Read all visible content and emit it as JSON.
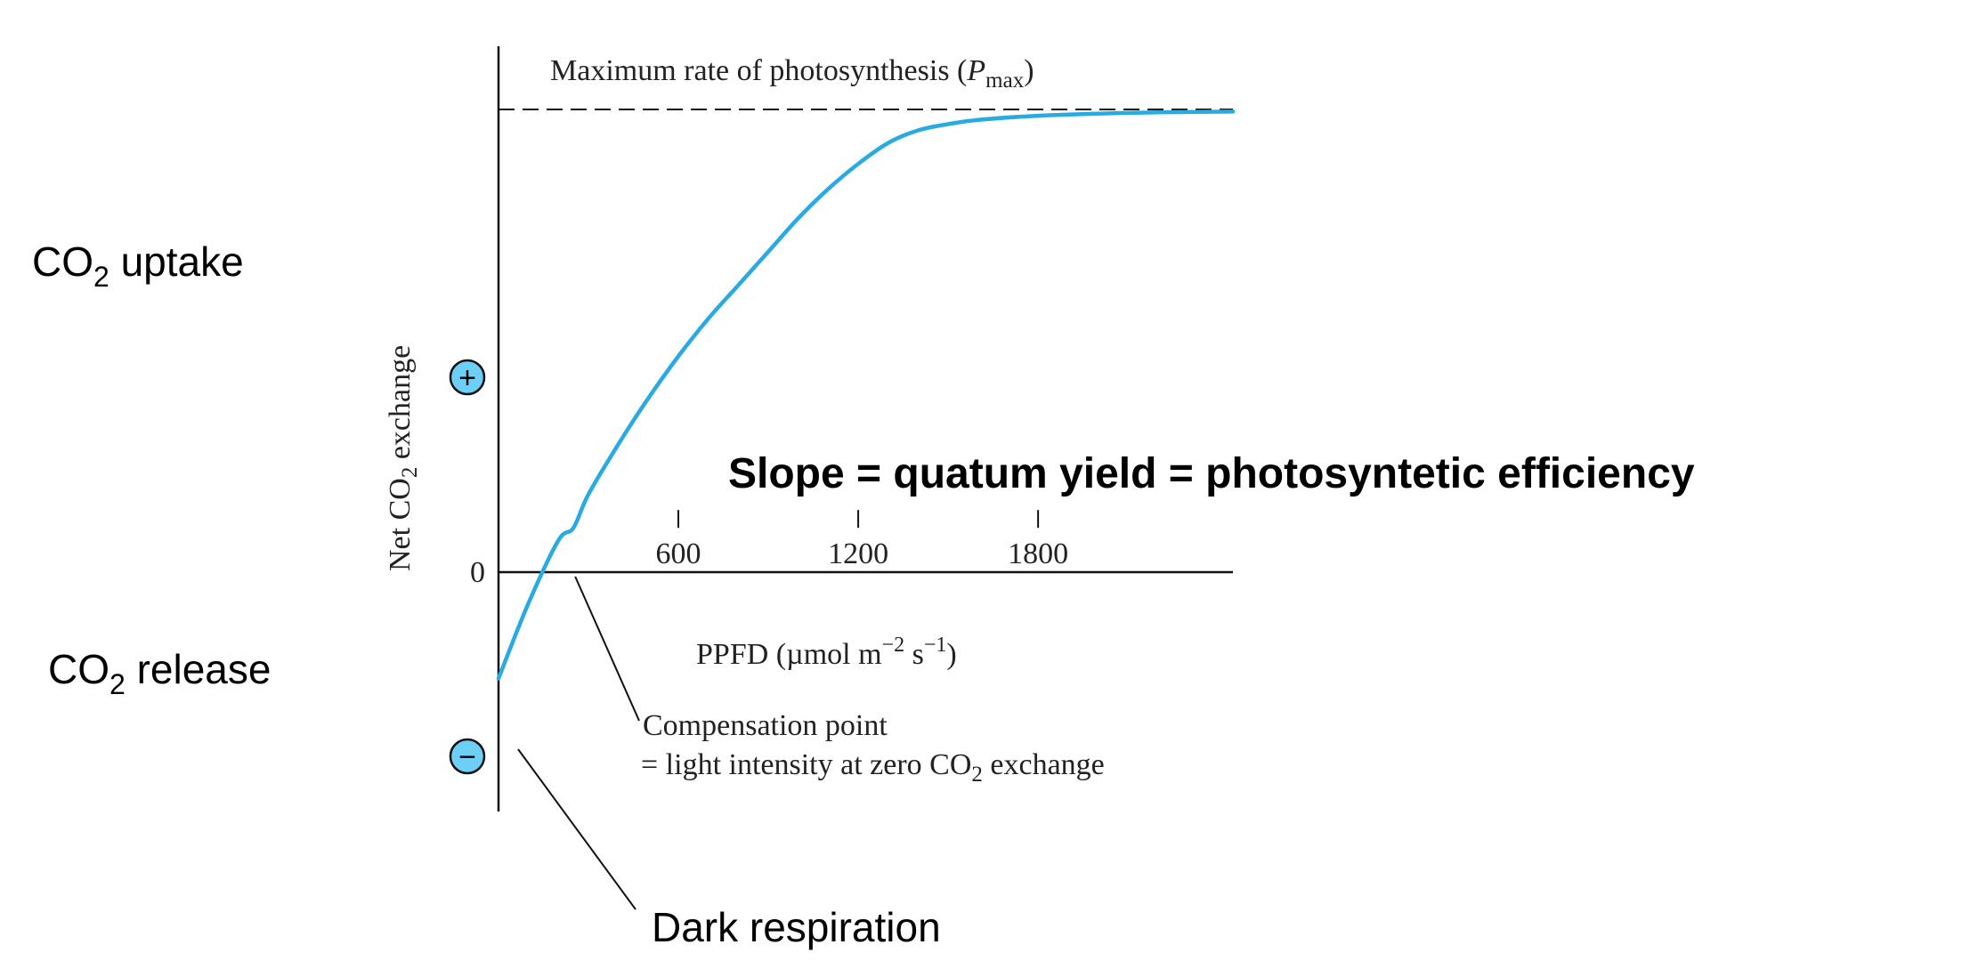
{
  "colors": {
    "curve": "#29abe2",
    "marker_fill": "#6ecff6",
    "axis": "#111111"
  },
  "chart_data": {
    "type": "line",
    "xlabel": {
      "base": "PPFD (µmol m",
      "exp1": "−2",
      "mid": " s",
      "exp2": "−1",
      "end": ")"
    },
    "ylabel": {
      "pre": "Net CO",
      "sub": "2",
      "post": " exchange"
    },
    "x_ticks": [
      "600",
      "1200",
      "1800"
    ],
    "y_tick_zero": "0",
    "xlim": [
      0,
      2450
    ],
    "ylim": [
      -0.51,
      1.0
    ],
    "series": [
      {
        "x": [
          0,
          100,
          200,
          250,
          300,
          400,
          500,
          600,
          700,
          800,
          900,
          1000,
          1100,
          1200,
          1300,
          1400,
          1500,
          1600,
          1800,
          2000,
          2200,
          2450
        ],
        "y": [
          -0.36,
          -0.18,
          -0.03,
          0.0,
          0.08,
          0.2,
          0.31,
          0.41,
          0.5,
          0.58,
          0.66,
          0.74,
          0.81,
          0.87,
          0.92,
          0.95,
          0.965,
          0.975,
          0.985,
          0.99,
          0.993,
          0.995
        ]
      }
    ],
    "pmax": {
      "value": 1.0,
      "label": "Maximum rate of photosynthesis (",
      "label_var": "P",
      "label_sub": "max",
      "label_end": ")"
    },
    "markers": {
      "plus": "+",
      "minus": "−"
    },
    "compensation_point": {
      "x": 250,
      "line1": "Compensation point",
      "line2_pre": "= light intensity at zero CO",
      "line2_sub": "2",
      "line2_post": " exchange"
    },
    "annotations": {
      "co2_uptake": {
        "pre": "CO",
        "sub": "2",
        "post": " uptake"
      },
      "co2_release": {
        "pre": "CO",
        "sub": "2",
        "post": " release"
      },
      "slope": "Slope = quatum yield = photosyntetic efficiency",
      "dark_respiration": "Dark respiration"
    }
  }
}
